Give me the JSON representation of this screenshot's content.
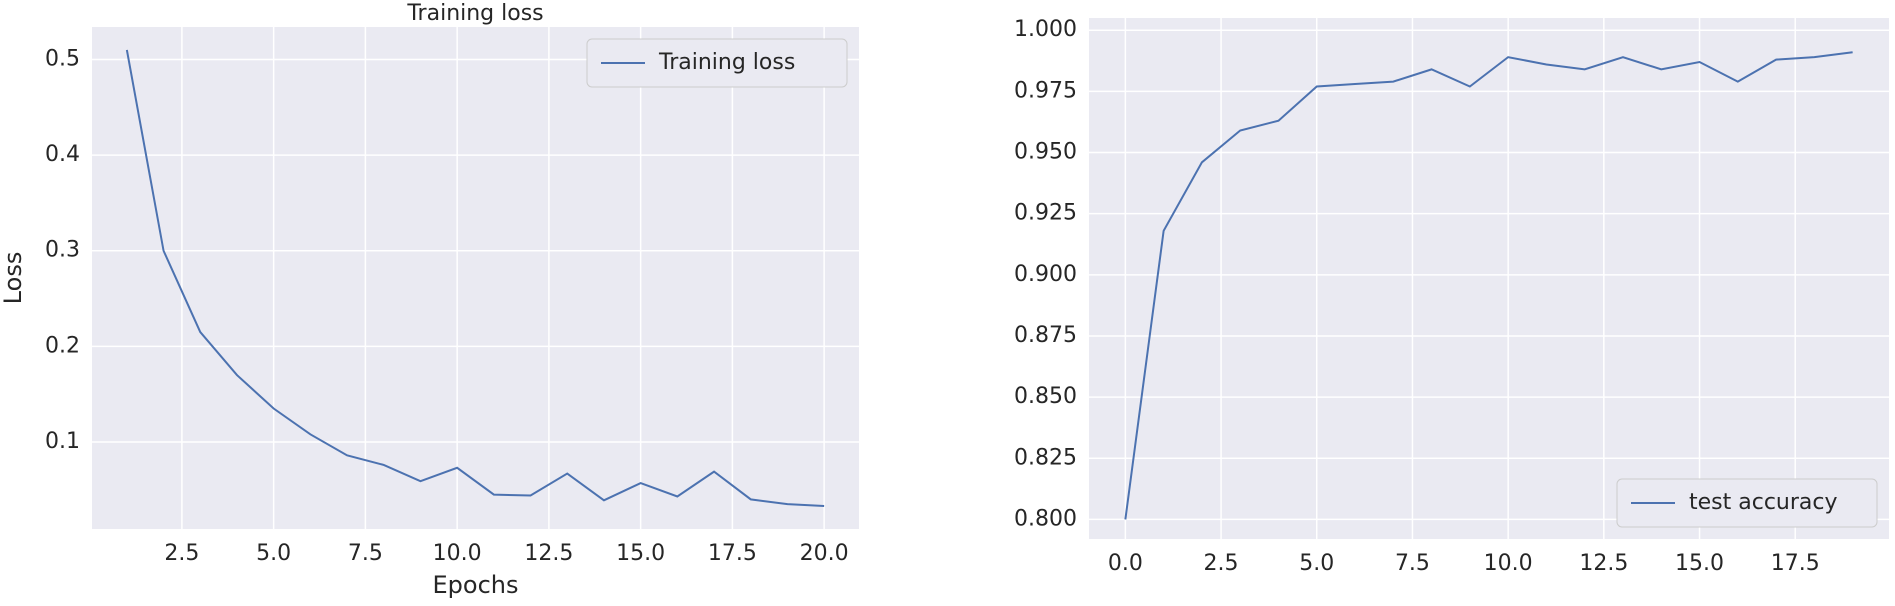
{
  "chart_data": [
    {
      "type": "line",
      "title": "Training loss",
      "xlabel": "Epochs",
      "ylabel": "Loss",
      "x": [
        1,
        2,
        3,
        4,
        5,
        6,
        7,
        8,
        9,
        10,
        11,
        12,
        13,
        14,
        15,
        16,
        17,
        18,
        19,
        20
      ],
      "series": [
        {
          "name": "Training loss",
          "color": "#4c72b0",
          "values": [
            0.51,
            0.3,
            0.215,
            0.17,
            0.135,
            0.108,
            0.086,
            0.076,
            0.059,
            0.073,
            0.045,
            0.044,
            0.067,
            0.039,
            0.057,
            0.043,
            0.069,
            0.04,
            0.035,
            0.033
          ]
        }
      ],
      "xlim": [
        0.05,
        20.95
      ],
      "ylim": [
        0.009,
        0.534
      ],
      "xticks": [
        2.5,
        {
          "value": 5,
          "label": "5.0"
        },
        7.5,
        {
          "value": 10,
          "label": "10.0"
        },
        12.5,
        {
          "value": 15,
          "label": "15.0"
        },
        17.5,
        {
          "value": 20,
          "label": "20.0"
        }
      ],
      "yticks": [
        0.1,
        0.2,
        0.3,
        0.4,
        0.5
      ],
      "grid": true,
      "legend": "upper-right"
    },
    {
      "type": "line",
      "x": [
        0,
        1,
        2,
        3,
        4,
        5,
        6,
        7,
        8,
        9,
        10,
        11,
        12,
        13,
        14,
        15,
        16,
        17,
        18,
        19
      ],
      "series": [
        {
          "name": "test accuracy",
          "color": "#4c72b0",
          "values": [
            0.8,
            0.918,
            0.946,
            0.959,
            0.963,
            0.977,
            0.978,
            0.979,
            0.984,
            0.977,
            0.989,
            0.986,
            0.984,
            0.989,
            0.984,
            0.987,
            0.979,
            0.988,
            0.989,
            0.991
          ]
        }
      ],
      "xlim": [
        -0.95,
        19.95
      ],
      "ylim": [
        0.792,
        1.005
      ],
      "xticks": [
        {
          "value": 0,
          "label": "0.0"
        },
        2.5,
        {
          "value": 5,
          "label": "5.0"
        },
        7.5,
        {
          "value": 10,
          "label": "10.0"
        },
        12.5,
        {
          "value": 15,
          "label": "15.0"
        },
        17.5
      ],
      "yticks": [
        {
          "value": 0.8,
          "label": "0.800"
        },
        {
          "value": 0.825,
          "label": "0.825"
        },
        {
          "value": 0.85,
          "label": "0.850"
        },
        {
          "value": 0.875,
          "label": "0.875"
        },
        {
          "value": 0.9,
          "label": "0.900"
        },
        {
          "value": 0.925,
          "label": "0.925"
        },
        {
          "value": 0.95,
          "label": "0.950"
        },
        {
          "value": 0.975,
          "label": "0.975"
        },
        {
          "value": 1,
          "label": "1.000"
        }
      ],
      "grid": true,
      "legend": "lower-right"
    }
  ]
}
